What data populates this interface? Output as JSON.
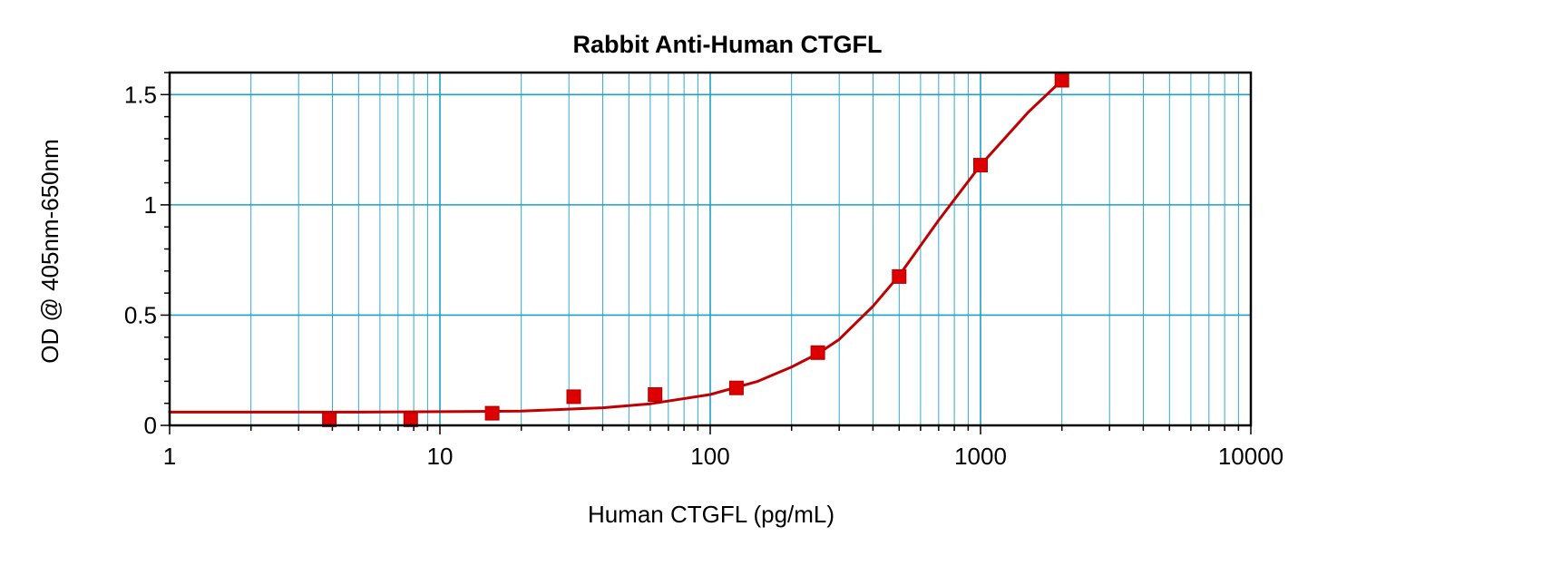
{
  "chart_data": {
    "type": "scatter",
    "title": "Rabbit Anti-Human CTGFL",
    "xlabel": "Human CTGFL (pg/mL)",
    "ylabel": "OD @ 405nm-650nm",
    "xscale": "log",
    "xlim": [
      1,
      10000
    ],
    "ylim": [
      0,
      1.6
    ],
    "xticks": [
      1,
      10,
      100,
      1000,
      10000
    ],
    "xtick_labels": [
      "1",
      "10",
      "100",
      "1000",
      "10000"
    ],
    "yticks": [
      0,
      0.5,
      1,
      1.5
    ],
    "ytick_labels": [
      "0",
      "0.5",
      "1",
      "1.5"
    ],
    "grid": true,
    "series": [
      {
        "marker": "square",
        "x": [
          3.9,
          7.8,
          15.6,
          31.25,
          62.5,
          125,
          250,
          500,
          1000,
          2000
        ],
        "y": [
          0.025,
          0.025,
          0.055,
          0.13,
          0.14,
          0.17,
          0.33,
          0.675,
          1.18,
          1.565
        ]
      }
    ],
    "fit_curve": {
      "type": "four-parameter logistic",
      "x": [
        1,
        5,
        10,
        20,
        40,
        60,
        100,
        150,
        200,
        250,
        300,
        400,
        500,
        700,
        1000,
        1500,
        2000
      ],
      "y": [
        0.06,
        0.06,
        0.062,
        0.065,
        0.08,
        0.098,
        0.14,
        0.2,
        0.265,
        0.325,
        0.39,
        0.54,
        0.68,
        0.93,
        1.18,
        1.42,
        1.565
      ]
    },
    "colors": {
      "marker": "#dd0000",
      "curve": "#c00000",
      "grid": "#1aa0c8",
      "frame": "#000000"
    }
  }
}
